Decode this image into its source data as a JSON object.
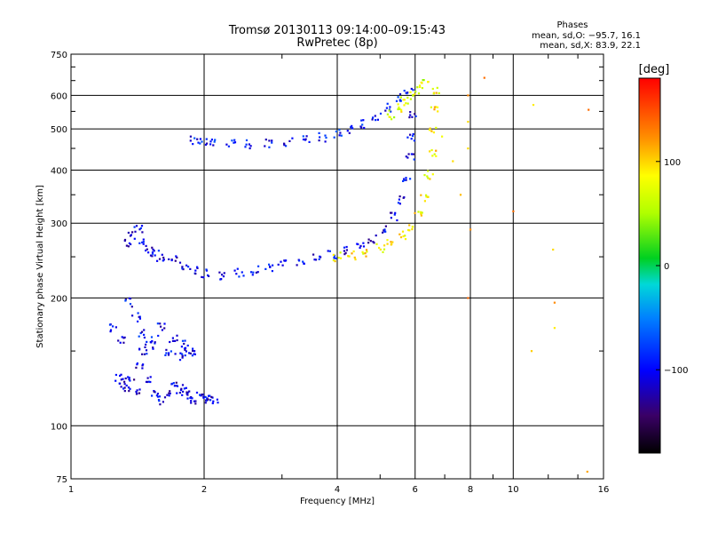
{
  "chart_data": {
    "type": "scatter",
    "title": "Tromsø 20130113 09:14:00–09:15:43",
    "subtitle": "RwPretec (8p)",
    "xlabel": "Frequency [MHz]",
    "ylabel": "Stationary phase Virtual Height [km]",
    "x_scale": "log",
    "y_scale": "log",
    "xlim": [
      1,
      16
    ],
    "ylim": [
      75,
      750
    ],
    "x_ticks": [
      1,
      2,
      4,
      6,
      8,
      10,
      16
    ],
    "x_tick_labels": [
      "1",
      "2",
      "4",
      "6",
      "8",
      "10",
      "16"
    ],
    "y_ticks": [
      75,
      100,
      200,
      300,
      400,
      500,
      600,
      750
    ],
    "y_tick_labels": [
      "75",
      "100",
      "200",
      "300",
      "400",
      "500",
      "600",
      "750"
    ],
    "grid": true,
    "stats": {
      "title": "Phases",
      "line_o": "mean, sd,O: −95.7, 16.1",
      "line_x": "mean, sd,X:  83.9, 22.1"
    },
    "colorbar": {
      "label": "[deg]",
      "min": -180,
      "max": 180,
      "ticks": [
        100,
        0,
        -100
      ],
      "tick_labels": [
        "100",
        "0",
        "−100"
      ]
    },
    "traces": [
      {
        "desc": "o-E",
        "points": [
          [
            1.28,
            130
          ],
          [
            1.3,
            125
          ],
          [
            1.33,
            122
          ],
          [
            1.36,
            128
          ],
          [
            1.4,
            120
          ],
          [
            1.43,
            140
          ],
          [
            1.46,
            150
          ],
          [
            1.5,
            128
          ],
          [
            1.55,
            118
          ],
          [
            1.6,
            115
          ],
          [
            1.65,
            118
          ],
          [
            1.7,
            125
          ],
          [
            1.75,
            122
          ],
          [
            1.8,
            120
          ],
          [
            1.85,
            118
          ],
          [
            1.9,
            115
          ],
          [
            1.95,
            118
          ],
          [
            2.0,
            116
          ],
          [
            2.05,
            115
          ],
          [
            2.1,
            115
          ]
        ],
        "phase": -110
      },
      {
        "desc": "o-F2low",
        "points": [
          [
            1.35,
            270
          ],
          [
            1.38,
            280
          ],
          [
            1.42,
            290
          ],
          [
            1.46,
            270
          ],
          [
            1.5,
            260
          ],
          [
            1.55,
            255
          ],
          [
            1.6,
            250
          ],
          [
            1.7,
            245
          ],
          [
            1.8,
            238
          ],
          [
            1.9,
            232
          ],
          [
            2.0,
            228
          ],
          [
            2.2,
            226
          ],
          [
            2.4,
            230
          ],
          [
            2.6,
            232
          ],
          [
            2.8,
            236
          ],
          [
            3.0,
            240
          ],
          [
            3.3,
            244
          ],
          [
            3.6,
            248
          ],
          [
            3.9,
            252
          ],
          [
            4.2,
            258
          ],
          [
            4.5,
            265
          ],
          [
            4.8,
            275
          ],
          [
            5.1,
            290
          ],
          [
            5.4,
            310
          ],
          [
            5.6,
            340
          ],
          [
            5.75,
            380
          ],
          [
            5.85,
            430
          ],
          [
            5.9,
            480
          ],
          [
            5.95,
            540
          ]
        ],
        "phase": -105
      },
      {
        "desc": "x-F2low",
        "points": [
          [
            4.0,
            250
          ],
          [
            4.3,
            252
          ],
          [
            4.6,
            256
          ],
          [
            5.0,
            262
          ],
          [
            5.3,
            270
          ],
          [
            5.6,
            280
          ],
          [
            5.9,
            295
          ],
          [
            6.1,
            315
          ],
          [
            6.3,
            345
          ],
          [
            6.45,
            390
          ],
          [
            6.55,
            440
          ],
          [
            6.6,
            500
          ],
          [
            6.65,
            560
          ],
          [
            6.68,
            620
          ]
        ],
        "phase": 90
      },
      {
        "desc": "o-F2high",
        "points": [
          [
            1.9,
            470
          ],
          [
            2.0,
            465
          ],
          [
            2.1,
            462
          ],
          [
            2.3,
            460
          ],
          [
            2.5,
            460
          ],
          [
            2.8,
            462
          ],
          [
            3.1,
            465
          ],
          [
            3.4,
            470
          ],
          [
            3.7,
            478
          ],
          [
            4.0,
            488
          ],
          [
            4.3,
            500
          ],
          [
            4.6,
            515
          ],
          [
            4.9,
            535
          ],
          [
            5.2,
            560
          ],
          [
            5.5,
            590
          ],
          [
            5.8,
            620
          ]
        ],
        "phase": -95
      },
      {
        "desc": "x-F2high",
        "points": [
          [
            5.3,
            540
          ],
          [
            5.5,
            560
          ],
          [
            5.7,
            580
          ],
          [
            5.9,
            600
          ],
          [
            6.1,
            620
          ],
          [
            6.3,
            640
          ]
        ],
        "phase": 70
      },
      {
        "desc": "scatter",
        "points": [
          [
            1.25,
            170
          ],
          [
            1.3,
            160
          ],
          [
            1.35,
            195
          ],
          [
            1.4,
            180
          ],
          [
            1.45,
            165
          ],
          [
            1.5,
            155
          ],
          [
            1.55,
            160
          ],
          [
            1.6,
            170
          ],
          [
            1.65,
            150
          ],
          [
            1.7,
            160
          ],
          [
            1.75,
            145
          ],
          [
            1.8,
            155
          ],
          [
            1.85,
            150
          ],
          [
            1.9,
            148
          ]
        ],
        "phase": -100
      },
      {
        "desc": "outliers",
        "points": [
          [
            6.9,
            480
          ],
          [
            7.3,
            420
          ],
          [
            7.6,
            350
          ],
          [
            7.9,
            450
          ],
          [
            7.9,
            520
          ],
          [
            7.9,
            600
          ],
          [
            8.6,
            660
          ],
          [
            10.0,
            320
          ],
          [
            11.1,
            570
          ],
          [
            12.3,
            260
          ],
          [
            12.4,
            195
          ],
          [
            12.4,
            170
          ],
          [
            11.0,
            150
          ],
          [
            14.8,
            555
          ],
          [
            14.7,
            78
          ],
          [
            8.0,
            290
          ],
          [
            7.9,
            200
          ]
        ],
        "phase": 110
      }
    ]
  }
}
